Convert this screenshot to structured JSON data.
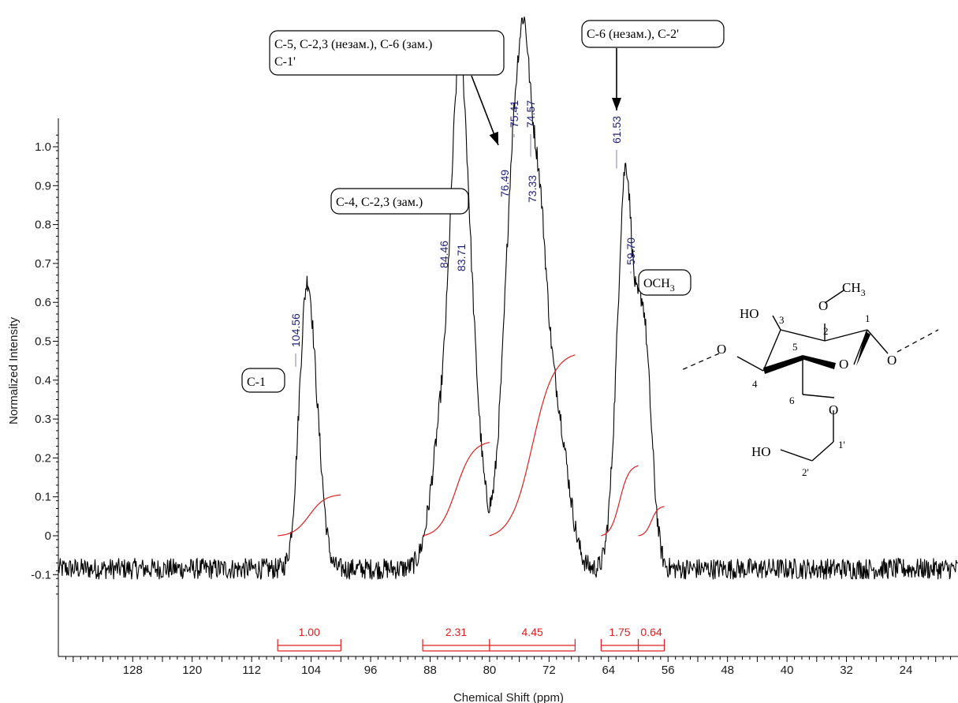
{
  "chart_data": {
    "type": "line",
    "title": "",
    "xlabel": "Chemical Shift (ppm)",
    "ylabel": "Normalized Intensity",
    "xlim": [
      138,
      17
    ],
    "ylim": [
      -0.15,
      1.05
    ],
    "x_reversed": true,
    "x_ticks": [
      128,
      120,
      112,
      104,
      96,
      88,
      80,
      72,
      64,
      56,
      48,
      40,
      32,
      24
    ],
    "y_ticks": [
      {
        "value": 1.0,
        "label": "1.0"
      },
      {
        "value": 0.9,
        "label": "0.9"
      },
      {
        "value": 0.8,
        "label": "0.8"
      },
      {
        "value": 0.7,
        "label": "0.7"
      },
      {
        "value": 0.6,
        "label": "0.6"
      },
      {
        "value": 0.5,
        "label": "0.5"
      },
      {
        "value": 0.4,
        "label": "0.4"
      },
      {
        "value": 0.3,
        "label": "0.3"
      },
      {
        "value": 0.2,
        "label": "0.2"
      },
      {
        "value": 0.1,
        "label": "0.1"
      },
      {
        "value": 0,
        "label": "0"
      },
      {
        "value": -0.1,
        "label": "-0.1"
      }
    ],
    "baseline": -0.085,
    "peaks": [
      {
        "x": 104.56,
        "label": "104.56",
        "h": 0.41
      },
      {
        "x": 84.46,
        "label": "84.46",
        "h": 0.655
      },
      {
        "x": 83.71,
        "label": "83.71",
        "h": 0.64
      },
      {
        "x": 76.49,
        "label": "76.49",
        "h": 0.84
      },
      {
        "x": 75.41,
        "label": "75.41",
        "h": 1.0
      },
      {
        "x": 74.57,
        "label": "74.57",
        "h": 0.95
      },
      {
        "x": 73.33,
        "label": "73.33",
        "h": 0.82
      },
      {
        "x": 61.53,
        "label": "61.53",
        "h": 0.92
      },
      {
        "x": 59.7,
        "label": "59.70",
        "h": 0.65
      }
    ],
    "integrals": [
      {
        "from": 108.5,
        "to": 100.0,
        "value": "1.00",
        "curve_start": 0.0,
        "curve_end": 0.105
      },
      {
        "from": 89.0,
        "to": 80.0,
        "value": "2.31",
        "curve_start": 0.0,
        "curve_end": 0.24
      },
      {
        "from": 80.0,
        "to": 68.5,
        "value": "4.45",
        "curve_start": 0.0,
        "curve_end": 0.465
      },
      {
        "from": 65.0,
        "to": 60.0,
        "value": "1.75",
        "curve_start": 0.0,
        "curve_end": 0.18
      },
      {
        "from": 60.0,
        "to": 56.5,
        "value": "0.64",
        "curve_start": 0.0,
        "curve_end": 0.075
      }
    ],
    "annotations": [
      {
        "id": "c1",
        "lines": [
          "C-1"
        ]
      },
      {
        "id": "c4",
        "lines": [
          "C-4, C-2,3 (зам.)"
        ]
      },
      {
        "id": "c5",
        "lines": [
          "C-5, C-2,3 (незам.), C-6 (зам.)",
          "C-1'"
        ]
      },
      {
        "id": "c6",
        "lines": [
          "C-6 (незам.), C-2'"
        ]
      },
      {
        "id": "och3",
        "lines": [
          "OCH3"
        ]
      }
    ],
    "structure": {
      "labels": [
        "O",
        "CH3",
        "HO",
        "O",
        "O",
        "O",
        "HO"
      ],
      "subscript": "3",
      "numbers": [
        "1",
        "2",
        "3",
        "4",
        "5",
        "6",
        "1'",
        "2'"
      ]
    },
    "colors": {
      "spectrum": "#000000",
      "integral": "#e02020",
      "peak_label": "#1f1f7a",
      "peak_tick": "#8080a0"
    }
  }
}
